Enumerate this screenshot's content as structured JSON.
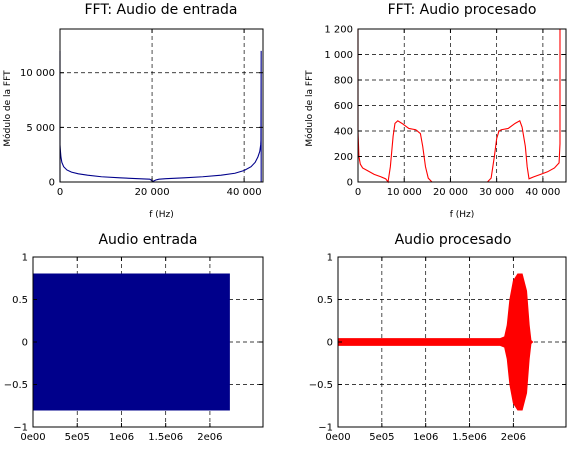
{
  "colors": {
    "input": "#00008b",
    "processed": "#ff0000"
  },
  "chart_data": [
    {
      "id": "fft_in",
      "type": "line",
      "title": "FFT: Audio de entrada",
      "xlabel": "f (Hz)",
      "ylabel": "Módulo de la FFT",
      "xlim": [
        0,
        44100
      ],
      "ylim": [
        0,
        14000
      ],
      "xticks": [
        0,
        20000,
        40000
      ],
      "xtick_labels": [
        "0",
        "20 000",
        "40 000"
      ],
      "yticks": [
        0,
        5000,
        10000
      ],
      "ytick_labels": [
        "0",
        "5 000",
        "10 000"
      ],
      "grid": true,
      "series": [
        {
          "color": "input",
          "x": [
            0,
            0,
            0,
            100,
            200,
            400,
            800,
            1500,
            2500,
            4000,
            6000,
            9000,
            13000,
            17000,
            19500,
            20200,
            20800,
            21500,
            23000,
            27000,
            31000,
            35000,
            38000,
            40000,
            41500,
            42400,
            43000,
            43400,
            43600,
            43650,
            43700,
            43700
          ],
          "y": [
            0,
            12000,
            3400,
            2800,
            2300,
            1800,
            1400,
            1100,
            900,
            750,
            620,
            480,
            380,
            300,
            260,
            60,
            180,
            260,
            300,
            380,
            480,
            620,
            800,
            1050,
            1400,
            1800,
            2300,
            2800,
            3400,
            3800,
            12000,
            0
          ]
        }
      ]
    },
    {
      "id": "fft_out",
      "type": "line",
      "title": "FFT: Audio procesado",
      "xlabel": "f (Hz)",
      "ylabel": "Módulo de la FFT",
      "xlim": [
        0,
        45000
      ],
      "ylim": [
        0,
        1200
      ],
      "xticks": [
        0,
        10000,
        20000,
        30000,
        40000
      ],
      "xtick_labels": [
        "0",
        "10 000",
        "20 000",
        "30 000",
        "40 000"
      ],
      "yticks": [
        0,
        200,
        400,
        600,
        800,
        1000,
        1200
      ],
      "ytick_labels": [
        "0",
        "200",
        "400",
        "600",
        "800",
        "1 000",
        "1 200"
      ],
      "grid": true,
      "series": [
        {
          "color": "processed",
          "x": [
            0,
            0,
            200,
            500,
            1000,
            2000,
            3500,
            5000,
            6000,
            6500,
            7000,
            7600,
            8000,
            8600,
            9500,
            11000,
            12500,
            13500,
            14000,
            14600,
            15200,
            16000,
            18000,
            22000,
            26000,
            28000,
            28800,
            29500,
            30000,
            30500,
            31000,
            32500,
            34000,
            35000,
            35500,
            36200,
            36600,
            37000,
            38000,
            39500,
            41000,
            42500,
            43500,
            43700,
            43700
          ],
          "y": [
            1200,
            400,
            200,
            140,
            110,
            90,
            60,
            40,
            25,
            0,
            120,
            360,
            460,
            480,
            460,
            420,
            410,
            380,
            280,
            120,
            30,
            0,
            0,
            0,
            0,
            0,
            30,
            200,
            340,
            400,
            410,
            420,
            460,
            480,
            430,
            280,
            120,
            25,
            40,
            60,
            80,
            110,
            150,
            300,
            1200
          ]
        }
      ]
    },
    {
      "id": "audio_in",
      "type": "area",
      "title": "Audio entrada",
      "xlim": [
        0,
        2600000
      ],
      "ylim": [
        -1,
        1
      ],
      "xticks": [
        0,
        500000,
        1000000,
        1500000,
        2000000
      ],
      "xtick_labels": [
        "0e00",
        "5e05",
        "1e06",
        "1.5e06",
        "2e06"
      ],
      "yticks": [
        -1,
        -0.5,
        0,
        0.5,
        1
      ],
      "ytick_labels": [
        "−1",
        "−0.5",
        "0",
        "0.5",
        "1"
      ],
      "grid": true,
      "series": [
        {
          "color": "input",
          "x": [
            0,
            2220000
          ],
          "upper": [
            0.8,
            0.8
          ],
          "lower": [
            -0.8,
            -0.8
          ]
        }
      ]
    },
    {
      "id": "audio_out",
      "type": "area",
      "title": "Audio procesado",
      "xlim": [
        0,
        2600000
      ],
      "ylim": [
        -1,
        1
      ],
      "xticks": [
        0,
        500000,
        1000000,
        1500000,
        2000000
      ],
      "xtick_labels": [
        "0e00",
        "5e05",
        "1e06",
        "1.5e06",
        "2e06"
      ],
      "yticks": [
        -1,
        -0.5,
        0,
        0.5,
        1
      ],
      "ytick_labels": [
        "−1",
        "−0.5",
        "0",
        "0.5",
        "1"
      ],
      "grid": true,
      "series": [
        {
          "color": "processed",
          "x": [
            0,
            1850000,
            1900000,
            1930000,
            1960000,
            2000000,
            2050000,
            2100000,
            2150000,
            2180000,
            2200000,
            2220000
          ],
          "upper": [
            0.04,
            0.04,
            0.06,
            0.2,
            0.5,
            0.72,
            0.8,
            0.8,
            0.6,
            0.2,
            0.02,
            0.0
          ],
          "lower": [
            -0.04,
            -0.04,
            -0.06,
            -0.2,
            -0.5,
            -0.72,
            -0.8,
            -0.8,
            -0.6,
            -0.2,
            -0.02,
            0.0
          ]
        }
      ]
    }
  ]
}
